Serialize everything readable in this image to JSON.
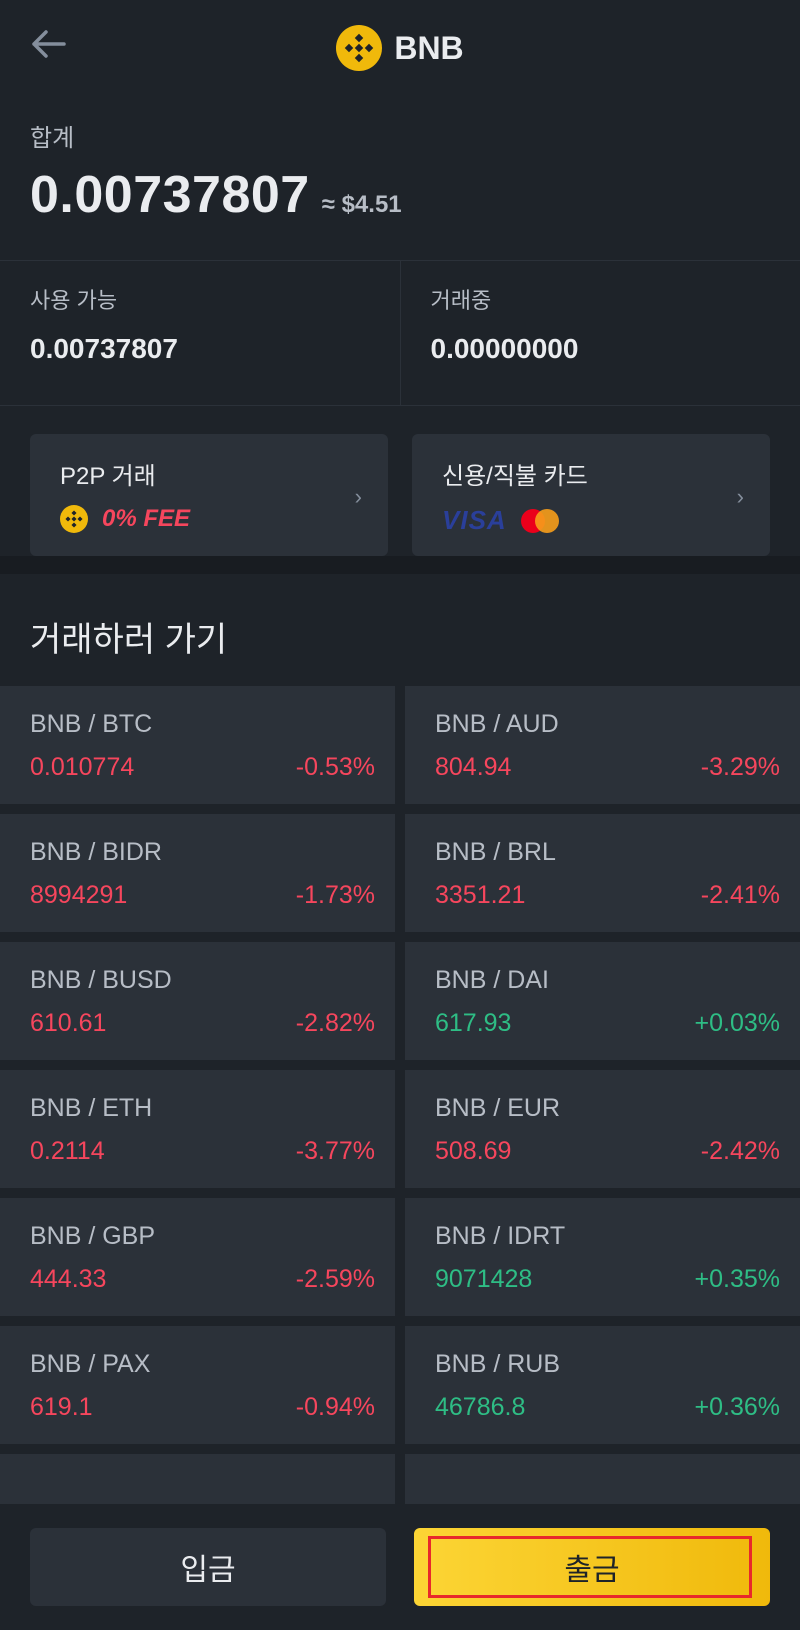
{
  "header": {
    "title": "BNB",
    "back_icon": "arrow-left-icon",
    "coin_icon": "bnb-logo-icon"
  },
  "total": {
    "label": "합계",
    "value": "0.00737807",
    "approx": "≈ $4.51"
  },
  "balances": {
    "available": {
      "label": "사용 가능",
      "value": "0.00737807"
    },
    "in_order": {
      "label": "거래중",
      "value": "0.00000000"
    }
  },
  "promos": [
    {
      "title": "P2P 거래",
      "sub": "0% FEE"
    },
    {
      "title": "신용/직불 카드",
      "sub": "VISA"
    }
  ],
  "section": {
    "title": "거래하러 가기"
  },
  "pairs": [
    {
      "name": "BNB / BTC",
      "price": "0.010774",
      "change": "-0.53%"
    },
    {
      "name": "BNB / AUD",
      "price": "804.94",
      "change": "-3.29%"
    },
    {
      "name": "BNB / BIDR",
      "price": "8994291",
      "change": "-1.73%"
    },
    {
      "name": "BNB / BRL",
      "price": "3351.21",
      "change": "-2.41%"
    },
    {
      "name": "BNB / BUSD",
      "price": "610.61",
      "change": "-2.82%"
    },
    {
      "name": "BNB / DAI",
      "price": "617.93",
      "change": "+0.03%"
    },
    {
      "name": "BNB / ETH",
      "price": "0.2114",
      "change": "-3.77%"
    },
    {
      "name": "BNB / EUR",
      "price": "508.69",
      "change": "-2.42%"
    },
    {
      "name": "BNB / GBP",
      "price": "444.33",
      "change": "-2.59%"
    },
    {
      "name": "BNB / IDRT",
      "price": "9071428",
      "change": "+0.35%"
    },
    {
      "name": "BNB / PAX",
      "price": "619.1",
      "change": "-0.94%"
    },
    {
      "name": "BNB / RUB",
      "price": "46786.8",
      "change": "+0.36%"
    }
  ],
  "actions": {
    "deposit": "입금",
    "withdraw": "출금"
  },
  "colors": {
    "up": "#2ebd85",
    "down": "#f6465d",
    "brand": "#f0b90b",
    "background": "#1e2329"
  }
}
